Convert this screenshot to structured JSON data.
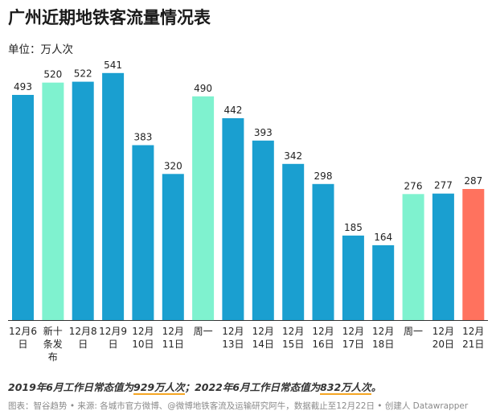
{
  "header": {
    "title": "广州近期地铁客流量情况表",
    "subtitle": "单位：万人次"
  },
  "chart_data": {
    "type": "bar",
    "categories": [
      "12月6\n日",
      "新十\n条发\n布",
      "12月8\n日",
      "12月9\n日",
      "12月\n10日",
      "12月\n11日",
      "周一",
      "12月\n13日",
      "12月\n14日",
      "12月\n15日",
      "12月\n16日",
      "12月\n17日",
      "12月\n18日",
      "周一",
      "12月\n20日",
      "12月\n21日"
    ],
    "values": [
      493,
      520,
      522,
      541,
      383,
      320,
      490,
      442,
      393,
      342,
      298,
      185,
      164,
      276,
      277,
      287
    ],
    "bar_colors": [
      "#1a9fd0",
      "#7ff2cf",
      "#1a9fd0",
      "#1a9fd0",
      "#1a9fd0",
      "#1a9fd0",
      "#7ff2cf",
      "#1a9fd0",
      "#1a9fd0",
      "#1a9fd0",
      "#1a9fd0",
      "#1a9fd0",
      "#1a9fd0",
      "#7ff2cf",
      "#1a9fd0",
      "#ff725e"
    ],
    "ylim": [
      0,
      560
    ],
    "grid": false
  },
  "note": {
    "part1": "2019年6月工作日常态值为",
    "hl1": "929万人次",
    "part2": "；2022年6月工作日常态值为",
    "hl2": "832万人次",
    "part3": "。"
  },
  "footer": {
    "label": "图表：",
    "credit": "智谷趋势 • 来源: 各城市官方微博、@微博地铁客流及运输研究阿牛，数据截止至12月22日 • 创建人 Datawrapper"
  }
}
